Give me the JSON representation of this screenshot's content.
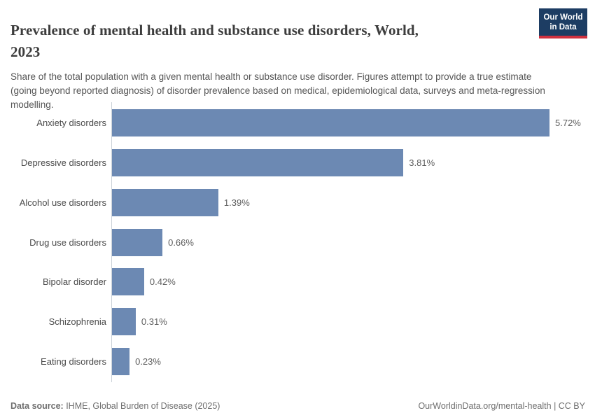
{
  "header": {
    "title_line1": "Prevalence of mental health and substance use disorders, World,",
    "title_line2": "2023",
    "subtitle": "Share of the total population with a given mental health or substance use disorder. Figures attempt to provide a true estimate (going beyond reported diagnosis) of disorder prevalence based on medical, epidemiological data, surveys and meta-regression modelling.",
    "logo_line1": "Our World",
    "logo_line2": "in Data"
  },
  "chart_data": {
    "type": "bar",
    "orientation": "horizontal",
    "title": "Prevalence of mental health and substance use disorders, World, 2023",
    "categories": [
      "Anxiety disorders",
      "Depressive disorders",
      "Alcohol use disorders",
      "Drug use disorders",
      "Bipolar disorder",
      "Schizophrenia",
      "Eating disorders"
    ],
    "values": [
      5.72,
      3.81,
      1.39,
      0.66,
      0.42,
      0.31,
      0.23
    ],
    "value_labels": [
      "5.72%",
      "3.81%",
      "1.39%",
      "0.66%",
      "0.42%",
      "0.31%",
      "0.23%"
    ],
    "unit": "%",
    "xlim": [
      0,
      5.72
    ],
    "grid": false,
    "legend": "none",
    "xlabel": "",
    "ylabel": ""
  },
  "footer": {
    "source_label": "Data source:",
    "source_text": " IHME, Global Burden of Disease (2025)",
    "credit": "OurWorldinData.org/mental-health | CC BY"
  },
  "colors": {
    "bar": "#6c89b3",
    "logo_navy": "#1d3d63",
    "logo_red": "#d0313f",
    "axis": "#ccd3d9"
  }
}
